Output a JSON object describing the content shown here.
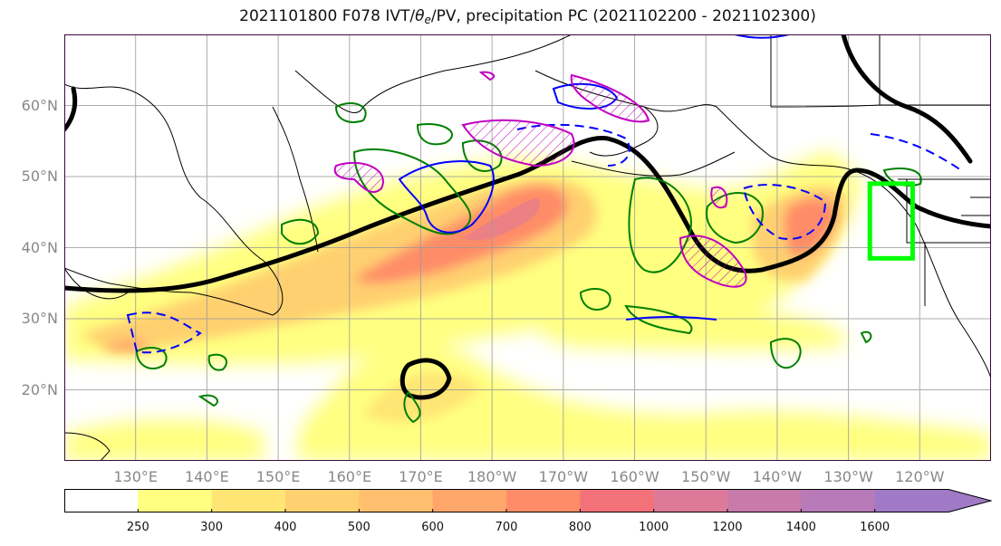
{
  "title": {
    "prefix": "2021101800 F078 IVT/",
    "theta": "θ",
    "sub": "e",
    "suffix": "/PV, precipitation PC (2021102200 - 2021102300)"
  },
  "map": {
    "lat_labels": [
      {
        "text": "60°N",
        "lat": 60
      },
      {
        "text": "50°N",
        "lat": 50
      },
      {
        "text": "40°N",
        "lat": 40
      },
      {
        "text": "30°N",
        "lat": 30
      },
      {
        "text": "20°N",
        "lat": 20
      }
    ],
    "lon_labels": [
      {
        "text": "130°E",
        "lon": 130
      },
      {
        "text": "140°E",
        "lon": 140
      },
      {
        "text": "150°E",
        "lon": 150
      },
      {
        "text": "160°E",
        "lon": 160
      },
      {
        "text": "170°E",
        "lon": 170
      },
      {
        "text": "180°W",
        "lon": 180
      },
      {
        "text": "170°W",
        "lon": 190
      },
      {
        "text": "160°W",
        "lon": 200
      },
      {
        "text": "150°W",
        "lon": 210
      },
      {
        "text": "140°W",
        "lon": 220
      },
      {
        "text": "130°W",
        "lon": 230
      },
      {
        "text": "120°W",
        "lon": 240
      }
    ],
    "extent": {
      "lon_min": 120,
      "lon_max": 250,
      "lat_min": 10,
      "lat_max": 70
    },
    "highlight_box": {
      "lon_min": 233,
      "lon_max": 239,
      "lat_min": 38.5,
      "lat_max": 49
    },
    "colors": {
      "ivt_fill": [
        "#ffff80",
        "#ffe574",
        "#ffd070",
        "#ffbf6e",
        "#ffa66a",
        "#ff8c68",
        "#f3727a",
        "#dd7a9a",
        "#b87ab8",
        "#a07ac6"
      ],
      "pv_contour": "#000000",
      "theta_e_contour": "#0000ff",
      "precip_contour": "#008000",
      "hatch_contour": "#c000c0",
      "highlight_box": "#00ff00",
      "frame": "#3a0a3a"
    }
  },
  "colorbar": {
    "tick_labels": [
      "250",
      "300",
      "400",
      "500",
      "600",
      "700",
      "800",
      "1000",
      "1200",
      "1400",
      "1600"
    ],
    "colors": [
      "#ffffff",
      "#ffff80",
      "#ffe574",
      "#ffd070",
      "#ffbf6e",
      "#ffa66a",
      "#ff8c68",
      "#f3727a",
      "#dd7a9a",
      "#c87aaa",
      "#b87ab8",
      "#a07ac6"
    ]
  }
}
